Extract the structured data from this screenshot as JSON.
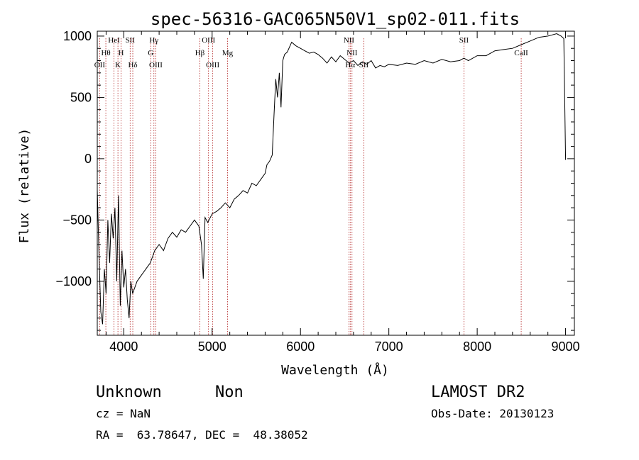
{
  "chart_data": {
    "type": "line",
    "title": "spec-56316-GAC065N50V1_sp02-011.fits",
    "xlabel": "Wavelength (Å)",
    "ylabel": "Flux (relative)",
    "xlim": [
      3700,
      9100
    ],
    "ylim": [
      -1440,
      1040
    ],
    "x_ticks": [
      4000,
      5000,
      6000,
      7000,
      8000,
      9000
    ],
    "y_ticks": [
      -1000,
      -500,
      0,
      500,
      1000
    ],
    "x_tick_labels": [
      "4000",
      "5000",
      "6000",
      "7000",
      "8000",
      "9000"
    ],
    "y_tick_labels": [
      "−1000",
      "−500",
      "0",
      "500",
      "1000"
    ],
    "series": [
      {
        "x": [
          3700,
          3720,
          3740,
          3760,
          3780,
          3800,
          3820,
          3840,
          3860,
          3880,
          3900,
          3920,
          3940,
          3960,
          3980,
          4000,
          4020,
          4040,
          4060,
          4080,
          4100,
          4150,
          4200,
          4250,
          4300,
          4350,
          4400,
          4450,
          4500,
          4550,
          4600,
          4650,
          4700,
          4750,
          4800,
          4850,
          4880,
          4900,
          4920,
          4950,
          5000,
          5050,
          5100,
          5150,
          5200,
          5250,
          5300,
          5350,
          5400,
          5450,
          5500,
          5550,
          5600,
          5620,
          5650,
          5680,
          5700,
          5720,
          5740,
          5760,
          5780,
          5800,
          5820,
          5850,
          5900,
          5950,
          6000,
          6050,
          6100,
          6150,
          6200,
          6250,
          6300,
          6350,
          6400,
          6450,
          6500,
          6550,
          6600,
          6650,
          6700,
          6750,
          6800,
          6850,
          6900,
          6950,
          7000,
          7100,
          7200,
          7300,
          7400,
          7500,
          7600,
          7700,
          7800,
          7850,
          7900,
          8000,
          8100,
          8200,
          8300,
          8400,
          8500,
          8600,
          8700,
          8800,
          8850,
          8900,
          8950,
          8980,
          9000
        ],
        "y": [
          -250,
          -800,
          -1250,
          -1350,
          -900,
          -1100,
          -500,
          -850,
          -450,
          -650,
          -400,
          -1000,
          -300,
          -1200,
          -750,
          -1050,
          -900,
          -1150,
          -1300,
          -1000,
          -1100,
          -1000,
          -950,
          -900,
          -850,
          -750,
          -700,
          -750,
          -650,
          -600,
          -640,
          -580,
          -600,
          -550,
          -500,
          -550,
          -700,
          -980,
          -480,
          -520,
          -450,
          -430,
          -400,
          -360,
          -400,
          -330,
          -300,
          -260,
          -280,
          -200,
          -220,
          -170,
          -120,
          -50,
          -20,
          30,
          350,
          650,
          500,
          700,
          420,
          800,
          850,
          870,
          950,
          920,
          900,
          880,
          860,
          870,
          850,
          820,
          780,
          830,
          790,
          840,
          810,
          780,
          800,
          760,
          790,
          770,
          800,
          740,
          760,
          750,
          770,
          760,
          780,
          770,
          800,
          780,
          810,
          790,
          800,
          820,
          800,
          840,
          840,
          880,
          890,
          900,
          930,
          960,
          990,
          1000,
          1010,
          1020,
          1000,
          980,
          -10
        ]
      }
    ],
    "lines": [
      {
        "x": 3727,
        "labels": [
          "OII"
        ]
      },
      {
        "x": 3797,
        "labels": [
          "Hθ"
        ]
      },
      {
        "x": 3889,
        "labels": [
          "HeI"
        ]
      },
      {
        "x": 3934,
        "labels": [
          "K"
        ]
      },
      {
        "x": 3969,
        "labels": [
          "H"
        ]
      },
      {
        "x": 4072,
        "labels": [
          "SII"
        ]
      },
      {
        "x": 4102,
        "labels": [
          "Hδ"
        ]
      },
      {
        "x": 4305,
        "labels": [
          "G"
        ]
      },
      {
        "x": 4341,
        "labels": [
          "Hγ"
        ]
      },
      {
        "x": 4363,
        "labels": [
          "OIII"
        ]
      },
      {
        "x": 4861,
        "labels": [
          "Hβ"
        ]
      },
      {
        "x": 4959,
        "labels": [
          "OIII"
        ]
      },
      {
        "x": 5007,
        "labels": [
          "OIII"
        ]
      },
      {
        "x": 5175,
        "labels": [
          "Mg"
        ]
      },
      {
        "x": 6548,
        "labels": [
          "NII"
        ]
      },
      {
        "x": 6563,
        "labels": [
          "Hα"
        ]
      },
      {
        "x": 6583,
        "labels": [
          "NII"
        ]
      },
      {
        "x": 6717,
        "labels": [
          "SII"
        ]
      },
      {
        "x": 7850,
        "labels": [
          "SII"
        ]
      },
      {
        "x": 8498,
        "labels": [
          "CaII"
        ]
      }
    ],
    "line_labels": [
      {
        "text": "OII",
        "x": 3727,
        "row": 2
      },
      {
        "text": "Hθ",
        "x": 3797,
        "row": 1
      },
      {
        "text": "HeI",
        "x": 3889,
        "row": 0
      },
      {
        "text": "K",
        "x": 3934,
        "row": 2
      },
      {
        "text": "H",
        "x": 3969,
        "row": 1
      },
      {
        "text": "SII",
        "x": 4072,
        "row": 0
      },
      {
        "text": "Hδ",
        "x": 4102,
        "row": 2
      },
      {
        "text": "Hγ",
        "x": 4341,
        "row": 0
      },
      {
        "text": "G",
        "x": 4305,
        "row": 1
      },
      {
        "text": "OIII",
        "x": 4363,
        "row": 2
      },
      {
        "text": "OIII",
        "x": 4959,
        "row": 0
      },
      {
        "text": "Hβ",
        "x": 4861,
        "row": 1
      },
      {
        "text": "OIII",
        "x": 5007,
        "row": 2
      },
      {
        "text": "Mg",
        "x": 5175,
        "row": 1
      },
      {
        "text": "NII",
        "x": 6548,
        "row": 0
      },
      {
        "text": "NII",
        "x": 6583,
        "row": 1
      },
      {
        "text": "Hα",
        "x": 6563,
        "row": 2
      },
      {
        "text": "SII",
        "x": 6717,
        "row": 2
      },
      {
        "text": "SII",
        "x": 7850,
        "row": 0
      },
      {
        "text": "CaII",
        "x": 8498,
        "row": 1
      }
    ],
    "grid": false,
    "colors": {
      "spectrum": "#000000",
      "lines": "#b22222",
      "axes": "#000000"
    }
  },
  "info": {
    "class": "Unknown",
    "subclass": "Non",
    "survey": "LAMOST DR2",
    "cz": "cz = NaN",
    "obs_date": "Obs-Date: 20130123",
    "radec": "RA =  63.78647, DEC =  48.38052"
  }
}
